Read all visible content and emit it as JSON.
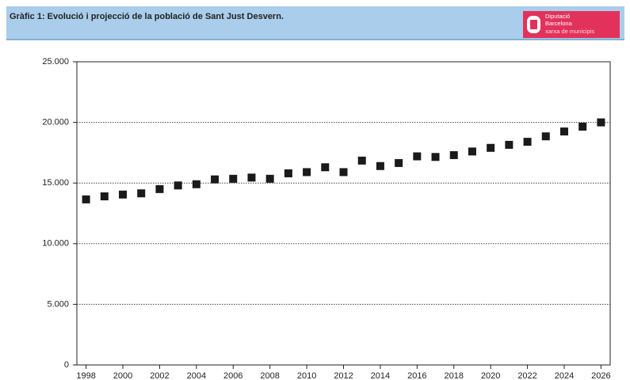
{
  "chart_data": {
    "type": "scatter",
    "title": "Gràfic 1: Evolució i projecció de la població de Sant Just Desvern.",
    "x": [
      1998,
      1999,
      2000,
      2001,
      2002,
      2003,
      2004,
      2005,
      2006,
      2007,
      2008,
      2009,
      2010,
      2011,
      2012,
      2013,
      2014,
      2015,
      2016,
      2017,
      2018,
      2019,
      2020,
      2021,
      2022,
      2023,
      2024,
      2025,
      2026
    ],
    "values": [
      13650,
      13900,
      14050,
      14150,
      14500,
      14800,
      14900,
      15300,
      15350,
      15450,
      15350,
      15800,
      15900,
      16300,
      15900,
      16850,
      16400,
      16650,
      17200,
      17150,
      17300,
      17600,
      17900,
      18150,
      18400,
      18850,
      19250,
      19650,
      20000
    ],
    "color": "#1a1a1a",
    "xlim": [
      1997.5,
      2026.5
    ],
    "xticks": [
      1998,
      2000,
      2002,
      2004,
      2006,
      2008,
      2010,
      2012,
      2014,
      2016,
      2018,
      2020,
      2022,
      2024,
      2026
    ],
    "ylim": [
      0,
      25000
    ],
    "yticks": [
      0,
      {
        "value": 5000,
        "label": "5.000"
      },
      {
        "value": 10000,
        "label": "10.000"
      },
      {
        "value": 15000,
        "label": "15.000"
      },
      {
        "value": 20000,
        "label": "20.000"
      },
      {
        "value": 25000,
        "label": "25.000"
      }
    ],
    "grid": true
  },
  "header": {
    "logo": [
      "Diputació",
      "Barcelona",
      "xarxa de municipis"
    ]
  }
}
